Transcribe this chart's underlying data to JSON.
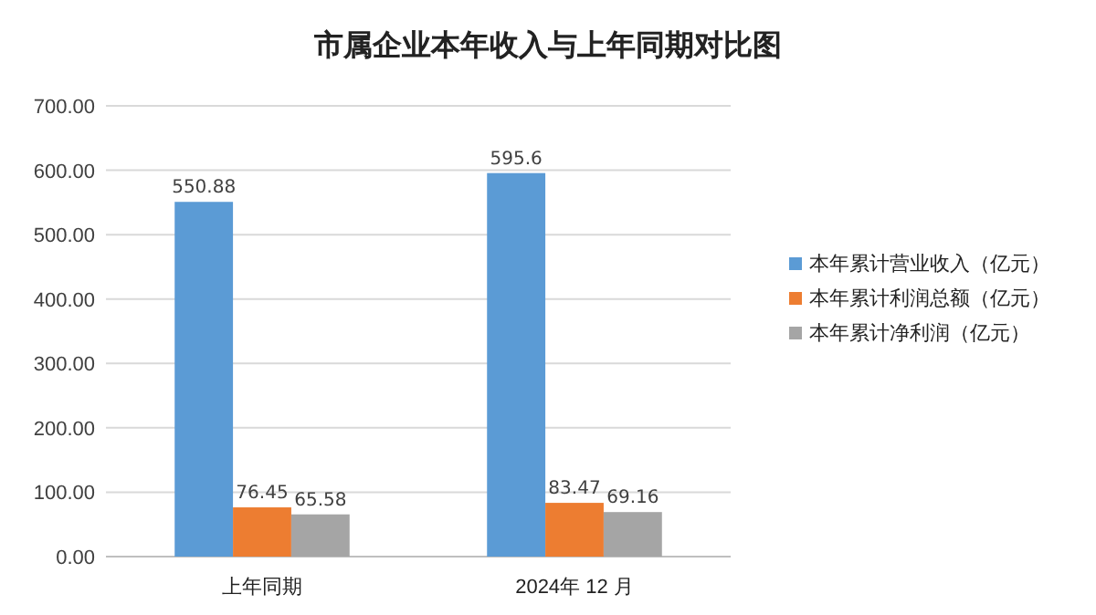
{
  "chart_data": {
    "type": "bar",
    "title": "市属企业本年收入与上年同期对比图",
    "categories": [
      "上年同期",
      "2024年 12 月"
    ],
    "series": [
      {
        "name": "本年累计营业收入（亿元）",
        "color": "#5b9bd5",
        "values": [
          550.88,
          595.6
        ]
      },
      {
        "name": "本年累计利润总额（亿元）",
        "color": "#ed7d31",
        "values": [
          76.45,
          83.47
        ]
      },
      {
        "name": "本年累计净利润（亿元）",
        "color": "#a5a5a5",
        "values": [
          65.58,
          69.16
        ]
      }
    ],
    "ylim": [
      0,
      700
    ],
    "yticks": [
      {
        "value": 0,
        "label": "0.00"
      },
      {
        "value": 100,
        "label": "100.00"
      },
      {
        "value": 200,
        "label": "200.00"
      },
      {
        "value": 300,
        "label": "300.00"
      },
      {
        "value": 400,
        "label": "400.00"
      },
      {
        "value": 500,
        "label": "500.00"
      },
      {
        "value": 600,
        "label": "600.00"
      },
      {
        "value": 700,
        "label": "700.00"
      }
    ],
    "grid": "y",
    "legend": "right",
    "data_labels": true
  }
}
